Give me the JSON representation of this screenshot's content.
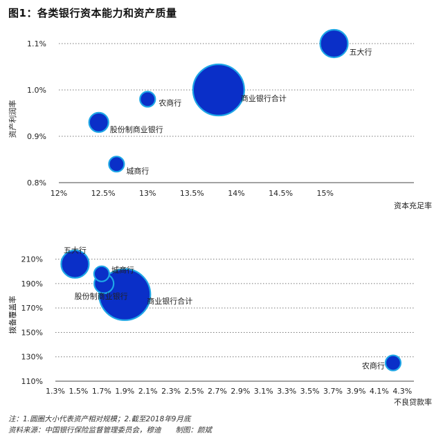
{
  "title": "图1：各类银行资本能力和资产质量",
  "notes": [
    "注：1.圆圈大小代表资产相对规模；2.截至2018年9月底",
    "资料来源：中国银行保险监督管理委员会，穆迪　　制图：颜斌"
  ],
  "colors": {
    "bubble_fill": "#0a2fc8",
    "bubble_edge": "#1ea6e6",
    "grid": "#777777",
    "axis": "#444444"
  },
  "chart_data": [
    {
      "type": "scatter",
      "ylabel": "资产利润率",
      "xlabel": "资本充足率",
      "xlim": [
        12,
        16
      ],
      "ylim": [
        0.8,
        1.1
      ],
      "xticks": [
        12,
        12.5,
        13,
        13.5,
        14,
        14.5,
        15
      ],
      "xtick_labels": [
        "12%",
        "12.5%",
        "13%",
        "13.5%",
        "14%",
        "14.5%",
        "15%"
      ],
      "yticks": [
        0.8,
        0.9,
        1.0,
        1.1
      ],
      "ytick_labels": [
        "0.8%",
        "0.9%",
        "1.0%",
        "1.1%"
      ],
      "grid": "horizontal dotted",
      "points": [
        {
          "label": "五大行",
          "x": 15.1,
          "y": 1.1,
          "size": 20
        },
        {
          "label": "商业银行合计",
          "x": 13.8,
          "y": 1.0,
          "size": 37
        },
        {
          "label": "农商行",
          "x": 13.0,
          "y": 0.98,
          "size": 11
        },
        {
          "label": "股份制商业银行",
          "x": 12.45,
          "y": 0.93,
          "size": 14
        },
        {
          "label": "城商行",
          "x": 12.65,
          "y": 0.84,
          "size": 11
        }
      ]
    },
    {
      "type": "scatter",
      "ylabel": "拨备覆盖率",
      "xlabel": "不良贷款率",
      "xlim": [
        1.3,
        4.4
      ],
      "ylim": [
        110,
        220
      ],
      "xticks": [
        1.3,
        1.5,
        1.7,
        1.9,
        2.1,
        2.3,
        2.5,
        2.7,
        2.9,
        3.1,
        3.3,
        3.5,
        3.7,
        3.9,
        4.1,
        4.3
      ],
      "xtick_labels": [
        "1.3%",
        "1.5%",
        "1.7%",
        "1.9%",
        "2.1%",
        "2.3%",
        "2.5%",
        "2.7%",
        "2.9%",
        "3.1%",
        "3.3%",
        "3.5%",
        "3.7%",
        "3.9%",
        "4.1%",
        "4.3%"
      ],
      "yticks": [
        110,
        130,
        150,
        170,
        190,
        210
      ],
      "ytick_labels": [
        "110%",
        "130%",
        "150%",
        "170%",
        "190%",
        "210%"
      ],
      "grid": "horizontal dotted",
      "points": [
        {
          "label": "五大行",
          "x": 1.47,
          "y": 206,
          "size": 20
        },
        {
          "label": "城商行",
          "x": 1.7,
          "y": 198,
          "size": 11
        },
        {
          "label": "股份制商业银行",
          "x": 1.72,
          "y": 190,
          "size": 14
        },
        {
          "label": "商业银行合计",
          "x": 1.9,
          "y": 181,
          "size": 37
        },
        {
          "label": "农商行",
          "x": 4.22,
          "y": 125,
          "size": 11
        }
      ]
    }
  ]
}
